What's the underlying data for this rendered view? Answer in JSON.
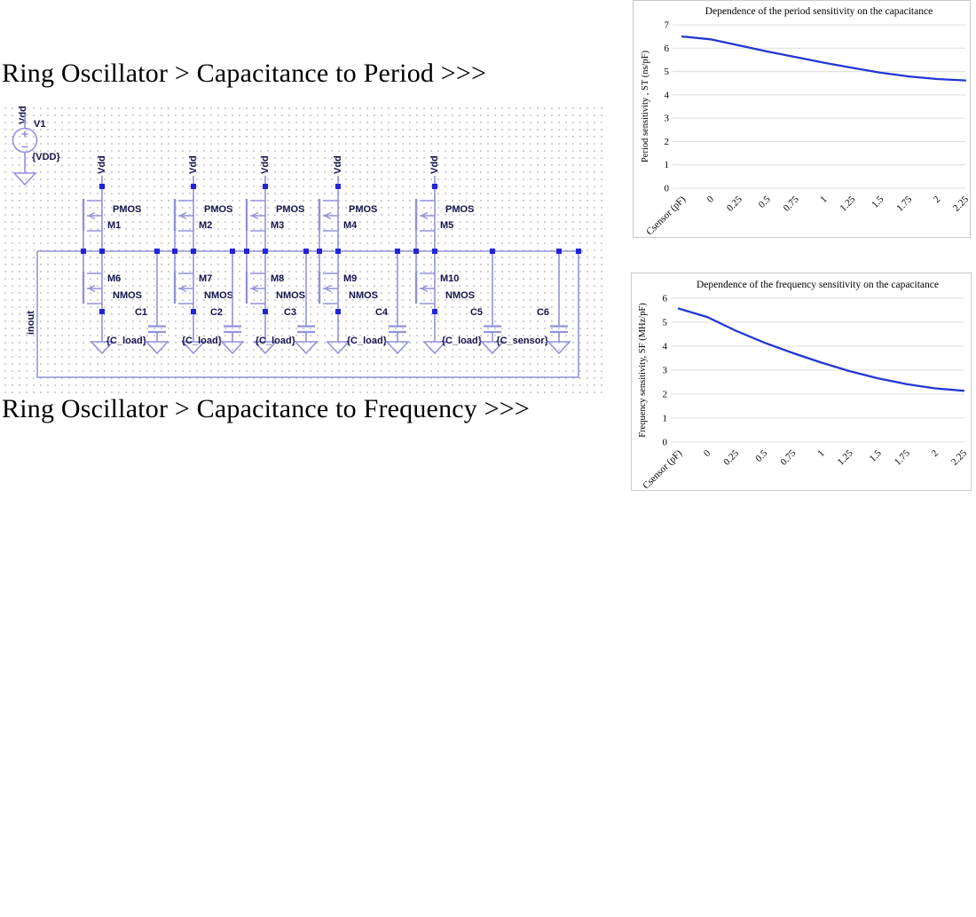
{
  "header1": {
    "text": "Ring Oscillator > Capacitance to Period >>>"
  },
  "header2": {
    "text": "Ring Oscillator > Capacitance to Frequency >>>"
  },
  "schematic": {
    "power_source": {
      "rail_label": "Vdd",
      "name": "V1",
      "value": "{VDD}"
    },
    "feedback_net_label": "inout",
    "stages": [
      {
        "rail_label": "Vdd",
        "pmos_type": "PMOS",
        "pmos_name": "M1",
        "nmos_name": "M6",
        "nmos_type": "NMOS"
      },
      {
        "rail_label": "Vdd",
        "pmos_type": "PMOS",
        "pmos_name": "M2",
        "nmos_name": "M7",
        "nmos_type": "NMOS"
      },
      {
        "rail_label": "Vdd",
        "pmos_type": "PMOS",
        "pmos_name": "M3",
        "nmos_name": "M8",
        "nmos_type": "NMOS"
      },
      {
        "rail_label": "Vdd",
        "pmos_type": "PMOS",
        "pmos_name": "M4",
        "nmos_name": "M9",
        "nmos_type": "NMOS"
      },
      {
        "rail_label": "Vdd",
        "pmos_type": "PMOS",
        "pmos_name": "M5",
        "nmos_name": "M10",
        "nmos_type": "NMOS"
      }
    ],
    "capacitors": [
      {
        "name": "C1",
        "value": "{C_load}"
      },
      {
        "name": "C2",
        "value": "{C_load}"
      },
      {
        "name": "C3",
        "value": "{C_load}"
      },
      {
        "name": "C4",
        "value": "{C_load}"
      },
      {
        "name": "C5",
        "value": "{C_load}"
      },
      {
        "name": "C6",
        "value": "{C_sensor}"
      }
    ],
    "colors": {
      "wire": "#9292dc",
      "junction": "#2323d8",
      "label": "#13134b"
    }
  },
  "chart_data": [
    {
      "type": "line",
      "title": "Dependence of the period sensitivity on the capacitance",
      "ylabel": "Period sensitivity , ST (ns/pF)",
      "xlabel": "",
      "categories": [
        "Csensor (pF)",
        "0",
        "0.25",
        "0.5",
        "0.75",
        "1",
        "1.25",
        "1.5",
        "1.75",
        "2",
        "2.25"
      ],
      "values": [
        6.5,
        6.38,
        6.12,
        5.86,
        5.62,
        5.38,
        5.16,
        4.95,
        4.79,
        4.68,
        4.62
      ],
      "ylim": [
        0,
        7
      ],
      "yticks": [
        0,
        1,
        2,
        3,
        4,
        5,
        6,
        7
      ],
      "grid": true,
      "legend": "none",
      "line_color": "#2236d3"
    },
    {
      "type": "line",
      "title": "Dependence of the frequency sensitivity on the capacitance",
      "ylabel": "Frequency sensitivity, SF (MHz/pF)",
      "xlabel": "",
      "categories": [
        "Csensor (pF)",
        "0",
        "0.25",
        "0.5",
        "0.75",
        "1",
        "1.25",
        "1.5",
        "1.75",
        "2",
        "2.25"
      ],
      "values": [
        5.57,
        5.22,
        4.65,
        4.15,
        3.72,
        3.32,
        2.96,
        2.66,
        2.42,
        2.24,
        2.14
      ],
      "ylim": [
        0,
        6
      ],
      "yticks": [
        0,
        1,
        2,
        3,
        4,
        5,
        6
      ],
      "grid": true,
      "legend": "none",
      "line_color": "#2236d3"
    }
  ]
}
